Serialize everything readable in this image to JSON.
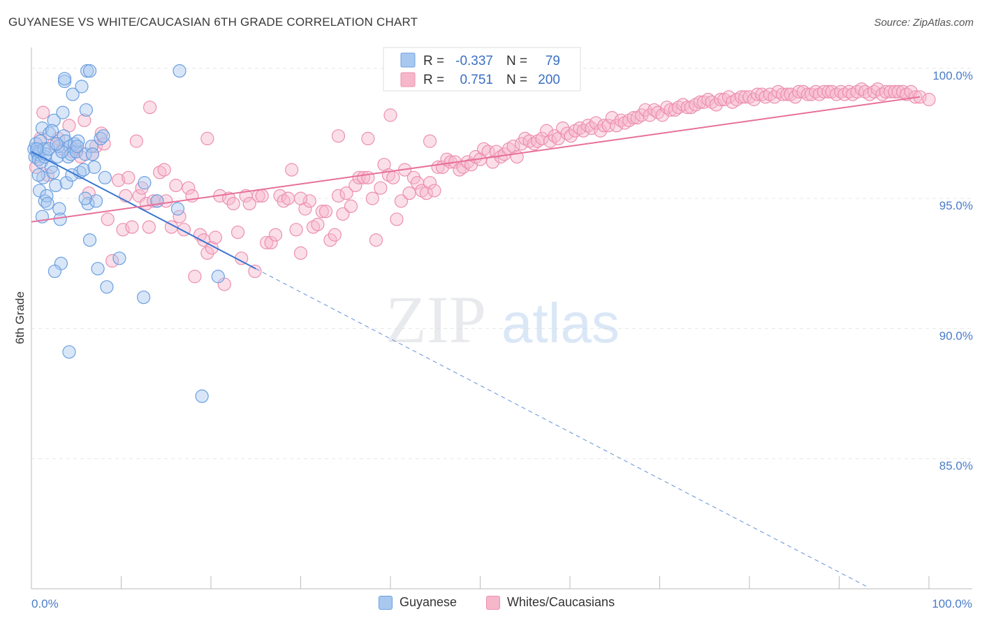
{
  "title": "GUYANESE VS WHITE/CAUCASIAN 6TH GRADE CORRELATION CHART",
  "source": "Source: ZipAtlas.com",
  "watermark": {
    "zip": "ZIP",
    "atlas": "atlas"
  },
  "colors": {
    "blue_fill": "#a9c8f0",
    "blue_stroke": "#6a9fe0",
    "blue_line": "#3a75d0",
    "pink_fill": "#f6b7cb",
    "pink_stroke": "#ec8fb0",
    "pink_line": "#e7709a",
    "axis_text": "#4a7cc9",
    "grid": "#e6e6e6"
  },
  "legend": {
    "r_label": "R =",
    "n_label": "N =",
    "rows": [
      {
        "r": "-0.337",
        "n": "79"
      },
      {
        "r": "0.751",
        "n": "200"
      }
    ]
  },
  "bottom_legend": [
    "Guyanese",
    "Whites/Caucasians"
  ],
  "chart_data": {
    "type": "scatter",
    "title": "GUYANESE VS WHITE/CAUCASIAN 6TH GRADE CORRELATION CHART",
    "xlabel": "",
    "ylabel": "6th Grade",
    "xlim": [
      0,
      100
    ],
    "ylim": [
      80.0,
      100.8
    ],
    "x_tick_labels": [
      "0.0%",
      "100.0%"
    ],
    "y_ticks": [
      85.0,
      90.0,
      95.0,
      100.0
    ],
    "y_tick_labels": [
      "85.0%",
      "90.0%",
      "95.0%",
      "100.0%"
    ],
    "grid": true,
    "legend_position": "top-center",
    "series": [
      {
        "name": "Guyanese",
        "r": -0.337,
        "n": 79,
        "trend": {
          "x0": 0,
          "y0": 96.8,
          "x1": 25,
          "y1": 92.3,
          "dashed_to_x": 93,
          "dashed_to_y": 80.1
        },
        "points": [
          [
            0.3,
            96.9
          ],
          [
            0.5,
            97.1
          ],
          [
            0.4,
            96.6
          ],
          [
            0.6,
            96.8
          ],
          [
            0.7,
            96.7
          ],
          [
            0.8,
            96.5
          ],
          [
            0.9,
            96.8
          ],
          [
            1.0,
            97.2
          ],
          [
            1.1,
            96.4
          ],
          [
            0.9,
            95.3
          ],
          [
            1.2,
            97.7
          ],
          [
            1.4,
            96.9
          ],
          [
            1.5,
            96.6
          ],
          [
            1.6,
            96.7
          ],
          [
            1.3,
            95.8
          ],
          [
            1.5,
            94.9
          ],
          [
            1.7,
            95.1
          ],
          [
            2.0,
            97.5
          ],
          [
            2.2,
            96.2
          ],
          [
            2.4,
            96.0
          ],
          [
            2.5,
            98.0
          ],
          [
            2.7,
            95.5
          ],
          [
            2.9,
            96.6
          ],
          [
            3.0,
            97.0
          ],
          [
            3.1,
            94.6
          ],
          [
            3.2,
            94.2
          ],
          [
            3.3,
            92.5
          ],
          [
            2.6,
            92.2
          ],
          [
            3.5,
            98.3
          ],
          [
            3.6,
            97.4
          ],
          [
            3.7,
            99.5
          ],
          [
            3.8,
            97.2
          ],
          [
            3.9,
            95.6
          ],
          [
            4.1,
            96.6
          ],
          [
            4.3,
            97.0
          ],
          [
            4.4,
            96.7
          ],
          [
            4.6,
            99.0
          ],
          [
            4.8,
            97.1
          ],
          [
            5.0,
            96.8
          ],
          [
            5.2,
            97.2
          ],
          [
            5.4,
            96.0
          ],
          [
            5.6,
            99.3
          ],
          [
            5.8,
            96.1
          ],
          [
            6.0,
            96.7
          ],
          [
            6.1,
            98.4
          ],
          [
            6.3,
            94.8
          ],
          [
            6.5,
            93.4
          ],
          [
            6.7,
            97.0
          ],
          [
            6.8,
            96.7
          ],
          [
            7.0,
            96.2
          ],
          [
            7.2,
            94.9
          ],
          [
            7.4,
            92.3
          ],
          [
            7.7,
            97.3
          ],
          [
            8.0,
            97.4
          ],
          [
            8.2,
            95.8
          ],
          [
            8.4,
            91.6
          ],
          [
            9.8,
            92.7
          ],
          [
            12.5,
            91.2
          ],
          [
            12.6,
            95.6
          ],
          [
            14.0,
            94.9
          ],
          [
            16.3,
            94.6
          ],
          [
            16.5,
            99.9
          ],
          [
            19.0,
            87.4
          ],
          [
            20.8,
            92.0
          ],
          [
            6.2,
            99.9
          ],
          [
            6.5,
            99.9
          ],
          [
            3.7,
            99.6
          ],
          [
            1.2,
            94.3
          ],
          [
            1.8,
            94.8
          ],
          [
            2.3,
            97.6
          ],
          [
            3.4,
            96.8
          ],
          [
            4.5,
            95.9
          ],
          [
            5.1,
            97.0
          ],
          [
            6.0,
            95.0
          ],
          [
            0.8,
            95.9
          ],
          [
            1.9,
            96.9
          ],
          [
            2.8,
            97.1
          ],
          [
            4.2,
            89.1
          ],
          [
            0.6,
            96.9
          ]
        ]
      },
      {
        "name": "Whites/Caucasians",
        "r": 0.751,
        "n": 200,
        "trend": {
          "x0": 0,
          "y0": 94.1,
          "x1": 99,
          "y1": 98.9
        },
        "points": [
          [
            0.5,
            96.2
          ],
          [
            1.0,
            97.3
          ],
          [
            1.3,
            98.3
          ],
          [
            1.8,
            95.9
          ],
          [
            2.5,
            97.1
          ],
          [
            3.0,
            97.3
          ],
          [
            3.5,
            96.9
          ],
          [
            4.2,
            97.8
          ],
          [
            4.6,
            96.8
          ],
          [
            5.0,
            96.9
          ],
          [
            5.5,
            96.6
          ],
          [
            5.9,
            98.0
          ],
          [
            6.4,
            95.2
          ],
          [
            6.8,
            96.7
          ],
          [
            7.2,
            97.0
          ],
          [
            7.8,
            97.5
          ],
          [
            8.1,
            97.1
          ],
          [
            8.5,
            94.2
          ],
          [
            9.0,
            92.6
          ],
          [
            9.7,
            95.7
          ],
          [
            10.2,
            93.8
          ],
          [
            10.5,
            95.1
          ],
          [
            10.8,
            95.8
          ],
          [
            11.2,
            93.9
          ],
          [
            11.7,
            97.2
          ],
          [
            12.0,
            95.1
          ],
          [
            12.3,
            95.4
          ],
          [
            12.8,
            94.8
          ],
          [
            13.1,
            93.9
          ],
          [
            13.6,
            94.9
          ],
          [
            14.0,
            94.9
          ],
          [
            14.3,
            96.0
          ],
          [
            14.8,
            96.1
          ],
          [
            15.0,
            94.9
          ],
          [
            15.6,
            93.9
          ],
          [
            16.1,
            95.5
          ],
          [
            16.5,
            94.3
          ],
          [
            17.0,
            93.8
          ],
          [
            17.5,
            95.4
          ],
          [
            17.9,
            95.1
          ],
          [
            18.2,
            92.0
          ],
          [
            18.8,
            93.6
          ],
          [
            19.2,
            93.4
          ],
          [
            19.6,
            92.9
          ],
          [
            20.1,
            93.1
          ],
          [
            20.5,
            93.5
          ],
          [
            21.0,
            95.1
          ],
          [
            21.5,
            91.7
          ],
          [
            22.0,
            95.0
          ],
          [
            22.5,
            94.8
          ],
          [
            23.0,
            93.7
          ],
          [
            23.4,
            92.7
          ],
          [
            23.9,
            95.1
          ],
          [
            24.3,
            94.8
          ],
          [
            24.9,
            92.2
          ],
          [
            25.3,
            95.1
          ],
          [
            25.7,
            95.1
          ],
          [
            26.2,
            93.3
          ],
          [
            26.7,
            93.3
          ],
          [
            27.2,
            93.6
          ],
          [
            27.7,
            95.1
          ],
          [
            28.1,
            94.9
          ],
          [
            28.6,
            95.0
          ],
          [
            29.0,
            96.1
          ],
          [
            29.5,
            93.8
          ],
          [
            30.0,
            92.9
          ],
          [
            30.5,
            94.6
          ],
          [
            31.0,
            94.9
          ],
          [
            31.4,
            93.9
          ],
          [
            31.9,
            94.0
          ],
          [
            32.4,
            94.5
          ],
          [
            32.8,
            94.5
          ],
          [
            33.3,
            93.4
          ],
          [
            33.8,
            93.6
          ],
          [
            34.2,
            95.1
          ],
          [
            34.7,
            94.4
          ],
          [
            35.1,
            95.2
          ],
          [
            35.6,
            94.7
          ],
          [
            36.1,
            95.5
          ],
          [
            36.5,
            95.8
          ],
          [
            37.0,
            95.8
          ],
          [
            37.5,
            95.8
          ],
          [
            38.0,
            95.0
          ],
          [
            38.4,
            93.4
          ],
          [
            38.9,
            95.4
          ],
          [
            39.3,
            96.3
          ],
          [
            39.8,
            95.9
          ],
          [
            40.3,
            95.8
          ],
          [
            40.7,
            94.2
          ],
          [
            41.2,
            94.9
          ],
          [
            41.6,
            96.1
          ],
          [
            42.1,
            95.2
          ],
          [
            42.6,
            95.8
          ],
          [
            43.0,
            95.6
          ],
          [
            43.5,
            95.3
          ],
          [
            44.0,
            95.2
          ],
          [
            44.4,
            95.6
          ],
          [
            44.9,
            95.3
          ],
          [
            45.3,
            96.2
          ],
          [
            45.8,
            96.2
          ],
          [
            46.3,
            96.5
          ],
          [
            46.7,
            96.4
          ],
          [
            47.2,
            96.4
          ],
          [
            47.7,
            96.1
          ],
          [
            48.1,
            96.2
          ],
          [
            48.6,
            96.4
          ],
          [
            49.0,
            96.3
          ],
          [
            49.5,
            96.6
          ],
          [
            50.0,
            96.5
          ],
          [
            50.4,
            96.9
          ],
          [
            50.9,
            96.8
          ],
          [
            51.4,
            96.4
          ],
          [
            51.8,
            96.8
          ],
          [
            52.3,
            96.6
          ],
          [
            52.7,
            96.7
          ],
          [
            53.2,
            96.9
          ],
          [
            53.7,
            97.0
          ],
          [
            54.1,
            96.6
          ],
          [
            54.6,
            97.1
          ],
          [
            55.0,
            97.3
          ],
          [
            55.5,
            97.2
          ],
          [
            56.0,
            97.1
          ],
          [
            56.4,
            97.2
          ],
          [
            56.9,
            97.3
          ],
          [
            57.4,
            97.6
          ],
          [
            57.8,
            97.2
          ],
          [
            58.3,
            97.4
          ],
          [
            58.7,
            97.3
          ],
          [
            59.2,
            97.7
          ],
          [
            59.7,
            97.5
          ],
          [
            60.1,
            97.4
          ],
          [
            60.6,
            97.6
          ],
          [
            61.1,
            97.7
          ],
          [
            61.5,
            97.6
          ],
          [
            62.0,
            97.8
          ],
          [
            62.4,
            97.7
          ],
          [
            62.9,
            97.9
          ],
          [
            63.4,
            97.6
          ],
          [
            63.8,
            97.8
          ],
          [
            64.3,
            97.8
          ],
          [
            64.7,
            98.1
          ],
          [
            65.2,
            97.8
          ],
          [
            65.7,
            98.0
          ],
          [
            66.1,
            97.9
          ],
          [
            66.6,
            98.0
          ],
          [
            67.1,
            98.1
          ],
          [
            67.5,
            98.1
          ],
          [
            68.0,
            98.2
          ],
          [
            68.4,
            98.4
          ],
          [
            68.9,
            98.2
          ],
          [
            69.4,
            98.4
          ],
          [
            69.8,
            98.3
          ],
          [
            70.3,
            98.2
          ],
          [
            70.8,
            98.5
          ],
          [
            71.2,
            98.4
          ],
          [
            71.7,
            98.4
          ],
          [
            72.1,
            98.5
          ],
          [
            72.6,
            98.6
          ],
          [
            73.1,
            98.5
          ],
          [
            73.5,
            98.5
          ],
          [
            74.0,
            98.6
          ],
          [
            74.5,
            98.7
          ],
          [
            74.9,
            98.7
          ],
          [
            75.4,
            98.8
          ],
          [
            75.8,
            98.7
          ],
          [
            76.3,
            98.6
          ],
          [
            76.8,
            98.8
          ],
          [
            77.2,
            98.8
          ],
          [
            77.7,
            98.9
          ],
          [
            78.1,
            98.7
          ],
          [
            78.6,
            98.8
          ],
          [
            79.1,
            98.9
          ],
          [
            79.5,
            98.9
          ],
          [
            80.0,
            98.9
          ],
          [
            80.5,
            98.8
          ],
          [
            80.9,
            99.0
          ],
          [
            81.4,
            99.0
          ],
          [
            81.8,
            98.9
          ],
          [
            82.3,
            99.0
          ],
          [
            82.8,
            98.9
          ],
          [
            83.2,
            99.1
          ],
          [
            83.7,
            99.0
          ],
          [
            84.2,
            99.0
          ],
          [
            84.6,
            99.0
          ],
          [
            85.1,
            98.9
          ],
          [
            85.5,
            99.1
          ],
          [
            86.0,
            99.1
          ],
          [
            86.5,
            99.0
          ],
          [
            86.9,
            99.0
          ],
          [
            87.4,
            99.1
          ],
          [
            87.8,
            99.0
          ],
          [
            88.3,
            99.1
          ],
          [
            88.8,
            99.1
          ],
          [
            89.2,
            99.1
          ],
          [
            89.7,
            99.0
          ],
          [
            90.2,
            99.1
          ],
          [
            90.6,
            99.0
          ],
          [
            91.1,
            99.1
          ],
          [
            91.5,
            99.0
          ],
          [
            92.0,
            99.1
          ],
          [
            92.5,
            99.2
          ],
          [
            92.9,
            99.1
          ],
          [
            93.4,
            99.0
          ],
          [
            93.9,
            99.1
          ],
          [
            94.3,
            99.2
          ],
          [
            94.8,
            99.0
          ],
          [
            95.2,
            99.1
          ],
          [
            95.7,
            99.1
          ],
          [
            96.2,
            99.1
          ],
          [
            96.6,
            99.1
          ],
          [
            97.1,
            99.1
          ],
          [
            97.5,
            99.0
          ],
          [
            98.0,
            99.1
          ],
          [
            98.5,
            98.9
          ],
          [
            99.0,
            98.9
          ],
          [
            100.0,
            98.8
          ],
          [
            19.6,
            97.3
          ],
          [
            34.2,
            97.4
          ],
          [
            37.5,
            97.3
          ],
          [
            40.0,
            98.2
          ],
          [
            13.2,
            98.5
          ],
          [
            44.4,
            97.2
          ],
          [
            30.0,
            95.0
          ]
        ]
      }
    ]
  }
}
